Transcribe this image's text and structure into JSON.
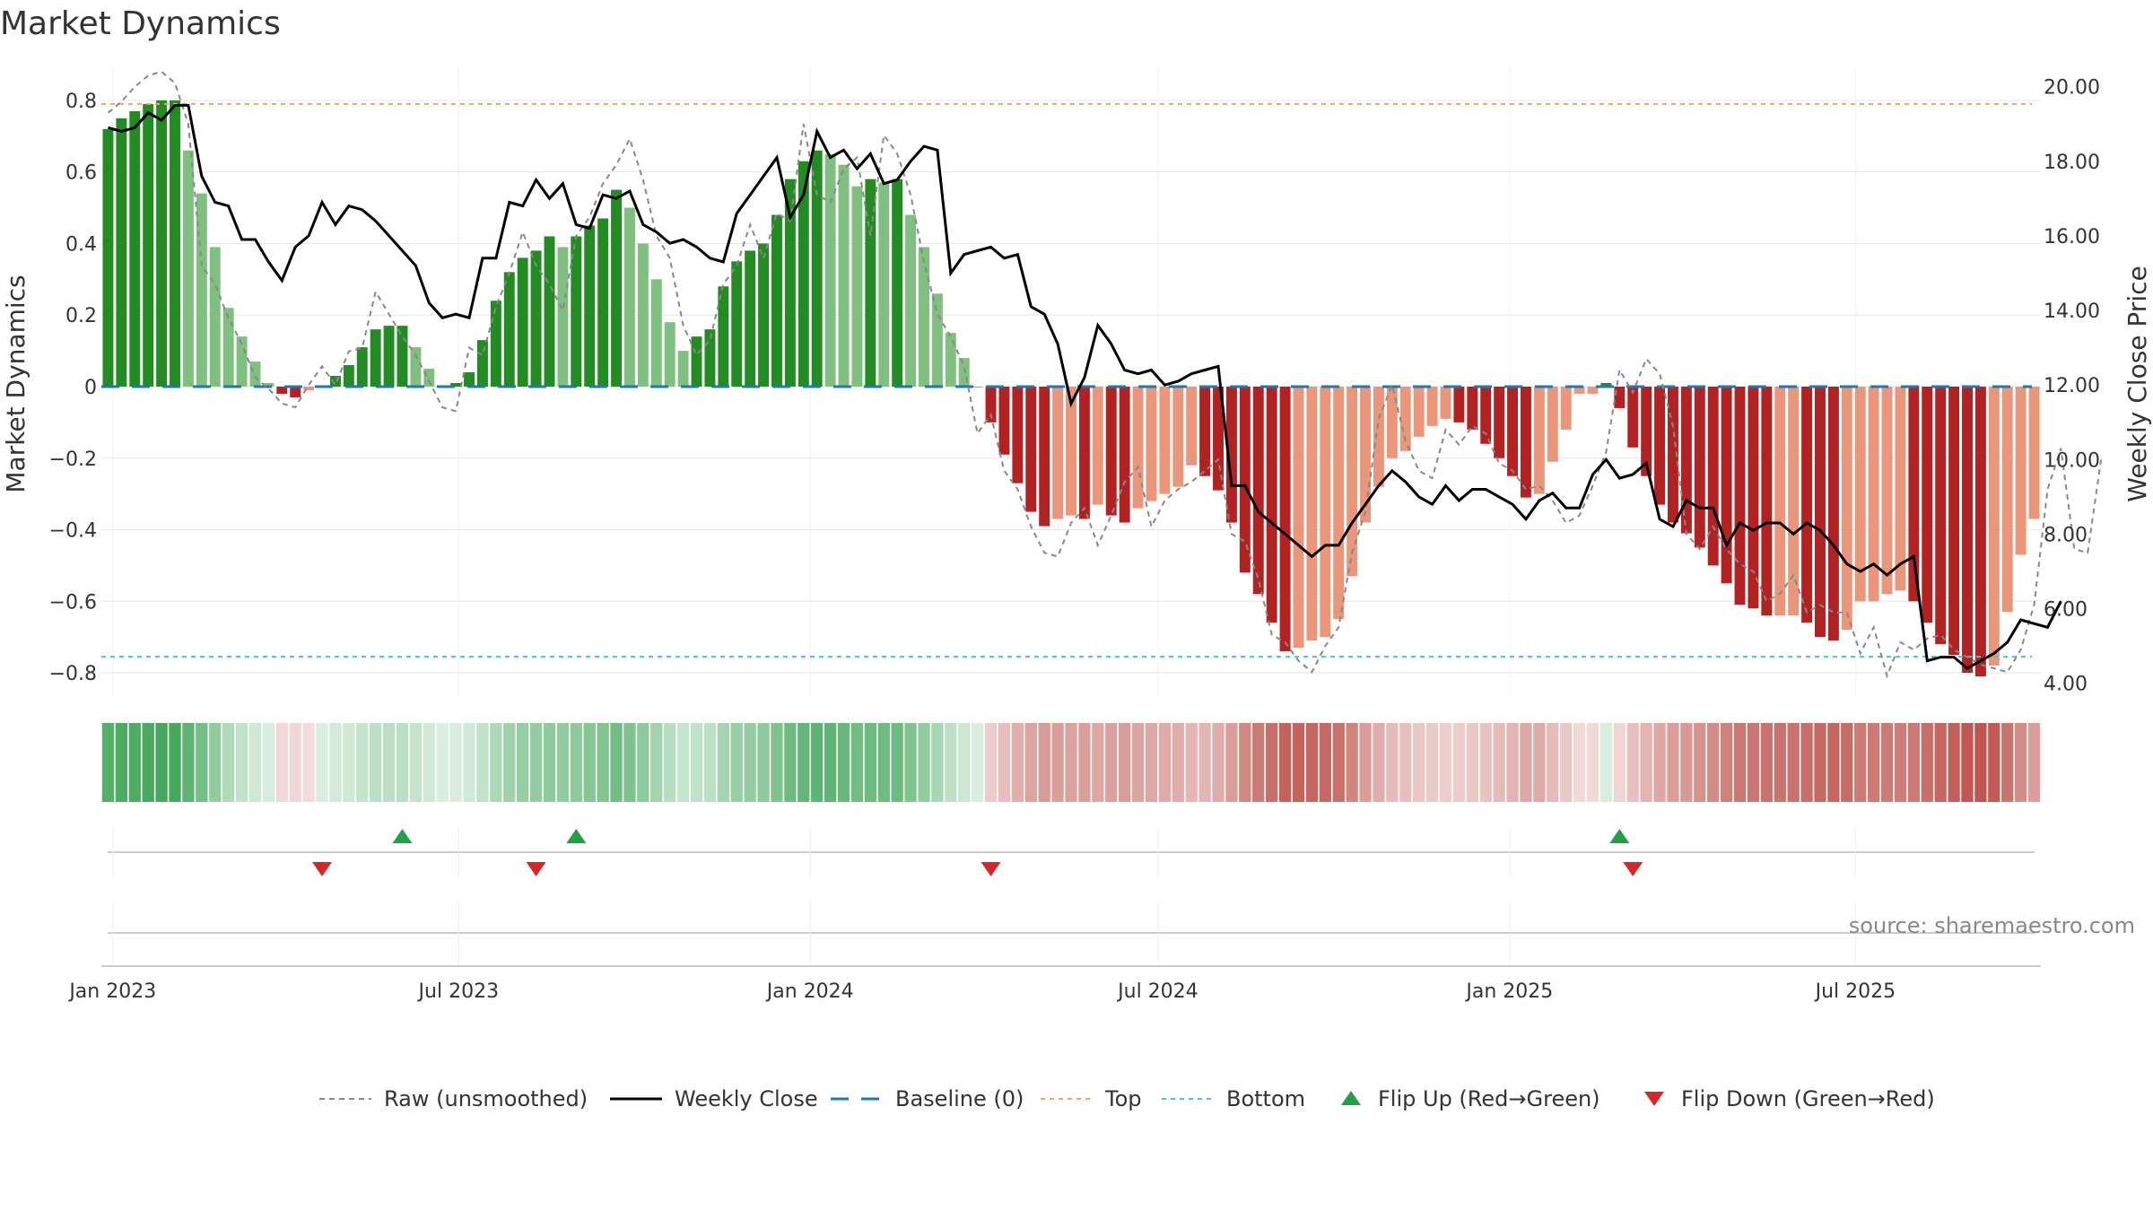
{
  "title": "Market Dynamics",
  "source": "source: sharemaestro.com",
  "colors": {
    "strong_green": "#228B22",
    "light_green": "#7fbf7f",
    "strong_red": "#b22222",
    "light_red": "#e9967a",
    "top_line": "#f4a460",
    "bottom_line": "#40c8d8",
    "baseline": "#1f77b4",
    "raw": "#888888",
    "close": "#000000",
    "flip_up": "#22a046",
    "flip_down": "#d62728"
  },
  "legend": [
    {
      "key": "raw",
      "label": "Raw (unsmoothed)"
    },
    {
      "key": "close",
      "label": "Weekly Close"
    },
    {
      "key": "baseline",
      "label": "Baseline (0)"
    },
    {
      "key": "top",
      "label": "Top"
    },
    {
      "key": "bottom",
      "label": "Bottom"
    },
    {
      "key": "flip_up",
      "label": "Flip Up (Red→Green)"
    },
    {
      "key": "flip_down",
      "label": "Flip Down (Green→Red)"
    }
  ],
  "chart_data": {
    "type": "bar",
    "start_date": "2022-12-26",
    "xlabel": "",
    "ylabel": "Market Dynamics",
    "y2label": "Weekly Close Price",
    "ylim": [
      -0.85,
      0.88
    ],
    "y2lim": [
      3.8,
      20.4
    ],
    "yticks": [
      "0.8",
      "0.6",
      "0.4",
      "0.2",
      "0",
      "−0.2",
      "−0.4",
      "−0.6",
      "−0.8"
    ],
    "yticks_values": [
      0.8,
      0.6,
      0.4,
      0.2,
      0,
      -0.2,
      -0.4,
      -0.6,
      -0.8
    ],
    "y2ticks": [
      "20.00",
      "18.00",
      "16.00",
      "14.00",
      "12.00",
      "10.00",
      "8.00",
      "6.00",
      "4.00"
    ],
    "y2ticks_values": [
      20,
      18,
      16,
      14,
      12,
      10,
      8,
      6,
      4
    ],
    "xticks": [
      {
        "label": "Jan 2023",
        "date": "2023-01-01"
      },
      {
        "label": "Jul 2023",
        "date": "2023-07-01"
      },
      {
        "label": "Jan 2024",
        "date": "2024-01-01"
      },
      {
        "label": "Jul 2024",
        "date": "2024-07-01"
      },
      {
        "label": "Jan 2025",
        "date": "2025-01-01"
      },
      {
        "label": "Jul 2025",
        "date": "2025-07-01"
      }
    ],
    "top_level": 0.79,
    "bottom_level": -0.755,
    "grid": true,
    "legend_position": "bottom",
    "dynamics": [
      0.72,
      0.75,
      0.77,
      0.79,
      0.8,
      0.8,
      0.66,
      0.54,
      0.39,
      0.22,
      0.14,
      0.07,
      0.01,
      -0.02,
      -0.03,
      -0.01,
      0.0,
      0.03,
      0.06,
      0.11,
      0.16,
      0.17,
      0.17,
      0.11,
      0.05,
      0.0,
      0.01,
      0.04,
      0.13,
      0.24,
      0.32,
      0.36,
      0.38,
      0.42,
      0.39,
      0.42,
      0.45,
      0.47,
      0.55,
      0.5,
      0.4,
      0.3,
      0.18,
      0.1,
      0.14,
      0.16,
      0.28,
      0.35,
      0.38,
      0.4,
      0.48,
      0.58,
      0.63,
      0.66,
      0.65,
      0.62,
      0.56,
      0.58,
      0.57,
      0.58,
      0.48,
      0.39,
      0.26,
      0.15,
      0.08,
      0.0,
      -0.1,
      -0.19,
      -0.27,
      -0.35,
      -0.39,
      -0.37,
      -0.36,
      -0.37,
      -0.33,
      -0.36,
      -0.38,
      -0.34,
      -0.32,
      -0.3,
      -0.28,
      -0.22,
      -0.25,
      -0.29,
      -0.38,
      -0.52,
      -0.58,
      -0.66,
      -0.74,
      -0.73,
      -0.71,
      -0.7,
      -0.65,
      -0.53,
      -0.38,
      -0.28,
      -0.2,
      -0.18,
      -0.14,
      -0.11,
      -0.09,
      -0.1,
      -0.12,
      -0.16,
      -0.2,
      -0.25,
      -0.31,
      -0.3,
      -0.21,
      -0.12,
      -0.02,
      -0.02,
      0.01,
      -0.06,
      -0.17,
      -0.25,
      -0.33,
      -0.38,
      -0.41,
      -0.45,
      -0.5,
      -0.55,
      -0.61,
      -0.62,
      -0.64,
      -0.64,
      -0.64,
      -0.66,
      -0.7,
      -0.71,
      -0.68,
      -0.6,
      -0.6,
      -0.58,
      -0.57,
      -0.6,
      -0.66,
      -0.72,
      -0.75,
      -0.8,
      -0.81,
      -0.78,
      -0.63,
      -0.47,
      -0.37
    ],
    "weekly_close": [
      18.9,
      18.8,
      18.9,
      19.3,
      19.1,
      19.5,
      19.5,
      17.6,
      16.9,
      16.8,
      15.9,
      15.9,
      15.3,
      14.8,
      15.7,
      16.0,
      16.9,
      16.3,
      16.8,
      16.7,
      16.4,
      16.0,
      15.6,
      15.2,
      14.2,
      13.8,
      13.9,
      13.8,
      15.4,
      15.4,
      16.9,
      16.8,
      17.5,
      17.0,
      17.4,
      16.3,
      16.2,
      17.1,
      17.0,
      17.2,
      16.3,
      16.1,
      15.8,
      15.9,
      15.7,
      15.4,
      15.3,
      16.6,
      17.1,
      17.6,
      18.1,
      16.5,
      17.1,
      18.8,
      18.1,
      18.3,
      17.8,
      18.2,
      17.4,
      17.5,
      18.0,
      18.4,
      18.3,
      15.0,
      15.5,
      15.6,
      15.7,
      15.4,
      15.5,
      14.1,
      13.9,
      13.1,
      11.5,
      12.2,
      13.6,
      13.1,
      12.4,
      12.3,
      12.4,
      12.0,
      12.1,
      12.3,
      12.4,
      12.5,
      9.3,
      9.3,
      8.6,
      8.3,
      8.0,
      7.7,
      7.4,
      7.7,
      7.7,
      8.3,
      8.8,
      9.3,
      9.7,
      9.4,
      9.0,
      8.8,
      9.3,
      8.9,
      9.2,
      9.2,
      9.0,
      8.8,
      8.4,
      8.9,
      9.1,
      8.7,
      8.7,
      9.6,
      10.0,
      9.5,
      9.6,
      9.9,
      8.4,
      8.2,
      8.9,
      8.7,
      8.7,
      7.7,
      8.3,
      8.1,
      8.3,
      8.3,
      8.0,
      8.3,
      8.1,
      7.7,
      7.2,
      7.0,
      7.2,
      6.9,
      7.2,
      7.4,
      4.6,
      4.7,
      4.7,
      4.4,
      4.6,
      4.8,
      5.1,
      5.7,
      5.6,
      5.5,
      6.2
    ],
    "raw": [
      19.3,
      19.6,
      20.0,
      20.3,
      20.4,
      20.1,
      19.0,
      15.2,
      14.7,
      13.8,
      13.1,
      12.2,
      11.9,
      11.5,
      11.4,
      12.0,
      12.5,
      12.0,
      12.9,
      13.0,
      14.5,
      13.9,
      13.3,
      12.8,
      12.1,
      11.4,
      11.3,
      13.0,
      12.8,
      14.1,
      15.0,
      16.1,
      15.2,
      14.7,
      14.0,
      16.0,
      16.5,
      17.4,
      17.9,
      18.6,
      17.5,
      16.0,
      15.4,
      13.6,
      12.8,
      13.2,
      14.7,
      15.2,
      16.3,
      15.4,
      16.6,
      16.4,
      19.0,
      17.1,
      16.9,
      17.8,
      18.1,
      16.0,
      18.7,
      18.2,
      17.1,
      15.3,
      13.9,
      13.3,
      12.5,
      10.7,
      11.2,
      9.7,
      9.2,
      8.2,
      7.5,
      7.4,
      8.3,
      8.7,
      7.7,
      8.5,
      9.4,
      9.8,
      8.2,
      8.9,
      9.2,
      9.4,
      9.7,
      10.0,
      8.0,
      7.8,
      6.8,
      5.3,
      5.1,
      4.6,
      4.3,
      5.0,
      5.5,
      7.5,
      8.6,
      11.1,
      12.0,
      10.5,
      9.7,
      9.5,
      10.8,
      10.4,
      10.9,
      10.7,
      9.9,
      9.7,
      9.2,
      9.3,
      8.9,
      8.3,
      8.5,
      9.3,
      10.2,
      12.4,
      11.8,
      12.7,
      12.3,
      10.9,
      8.0,
      7.6,
      8.2,
      7.6,
      7.2,
      7.0,
      6.2,
      6.4,
      6.9,
      5.9,
      6.1,
      5.9,
      5.9,
      4.8,
      5.5,
      4.2,
      5.1,
      4.9,
      5.2,
      5.3,
      4.9,
      4.7,
      4.5,
      4.4,
      4.3,
      4.9,
      6.1,
      9.2,
      10.3,
      7.6,
      7.5,
      10.0
    ],
    "flip_up_weeks": [
      22,
      35,
      113
    ],
    "flip_down_weeks": [
      16,
      32,
      66,
      114
    ],
    "heat_values": [
      0.72,
      0.75,
      0.77,
      0.79,
      0.8,
      0.8,
      0.66,
      0.54,
      0.39,
      0.22,
      0.14,
      0.07,
      0.01,
      -0.02,
      -0.03,
      -0.01,
      0.0,
      0.03,
      0.06,
      0.11,
      0.16,
      0.17,
      0.17,
      0.11,
      0.05,
      0.0,
      0.01,
      0.04,
      0.13,
      0.24,
      0.32,
      0.36,
      0.38,
      0.42,
      0.39,
      0.42,
      0.45,
      0.47,
      0.55,
      0.5,
      0.4,
      0.3,
      0.18,
      0.1,
      0.14,
      0.16,
      0.28,
      0.35,
      0.38,
      0.4,
      0.48,
      0.58,
      0.63,
      0.66,
      0.65,
      0.62,
      0.56,
      0.58,
      0.57,
      0.58,
      0.48,
      0.39,
      0.26,
      0.15,
      0.08,
      0.0,
      -0.1,
      -0.19,
      -0.27,
      -0.35,
      -0.39,
      -0.37,
      -0.36,
      -0.37,
      -0.33,
      -0.36,
      -0.38,
      -0.34,
      -0.32,
      -0.3,
      -0.28,
      -0.22,
      -0.25,
      -0.29,
      -0.38,
      -0.52,
      -0.58,
      -0.66,
      -0.74,
      -0.73,
      -0.71,
      -0.7,
      -0.65,
      -0.53,
      -0.38,
      -0.28,
      -0.2,
      -0.18,
      -0.14,
      -0.11,
      -0.09,
      -0.1,
      -0.12,
      -0.16,
      -0.2,
      -0.25,
      -0.31,
      -0.3,
      -0.21,
      -0.12,
      -0.02,
      -0.02,
      0.01,
      -0.06,
      -0.17,
      -0.25,
      -0.33,
      -0.38,
      -0.41,
      -0.45,
      -0.5,
      -0.55,
      -0.61,
      -0.62,
      -0.64,
      -0.64,
      -0.64,
      -0.66,
      -0.7,
      -0.71,
      -0.68,
      -0.6,
      -0.6,
      -0.58,
      -0.57,
      -0.6,
      -0.66,
      -0.72,
      -0.75,
      -0.8,
      -0.81,
      -0.78,
      -0.63,
      -0.47,
      -0.37
    ]
  }
}
